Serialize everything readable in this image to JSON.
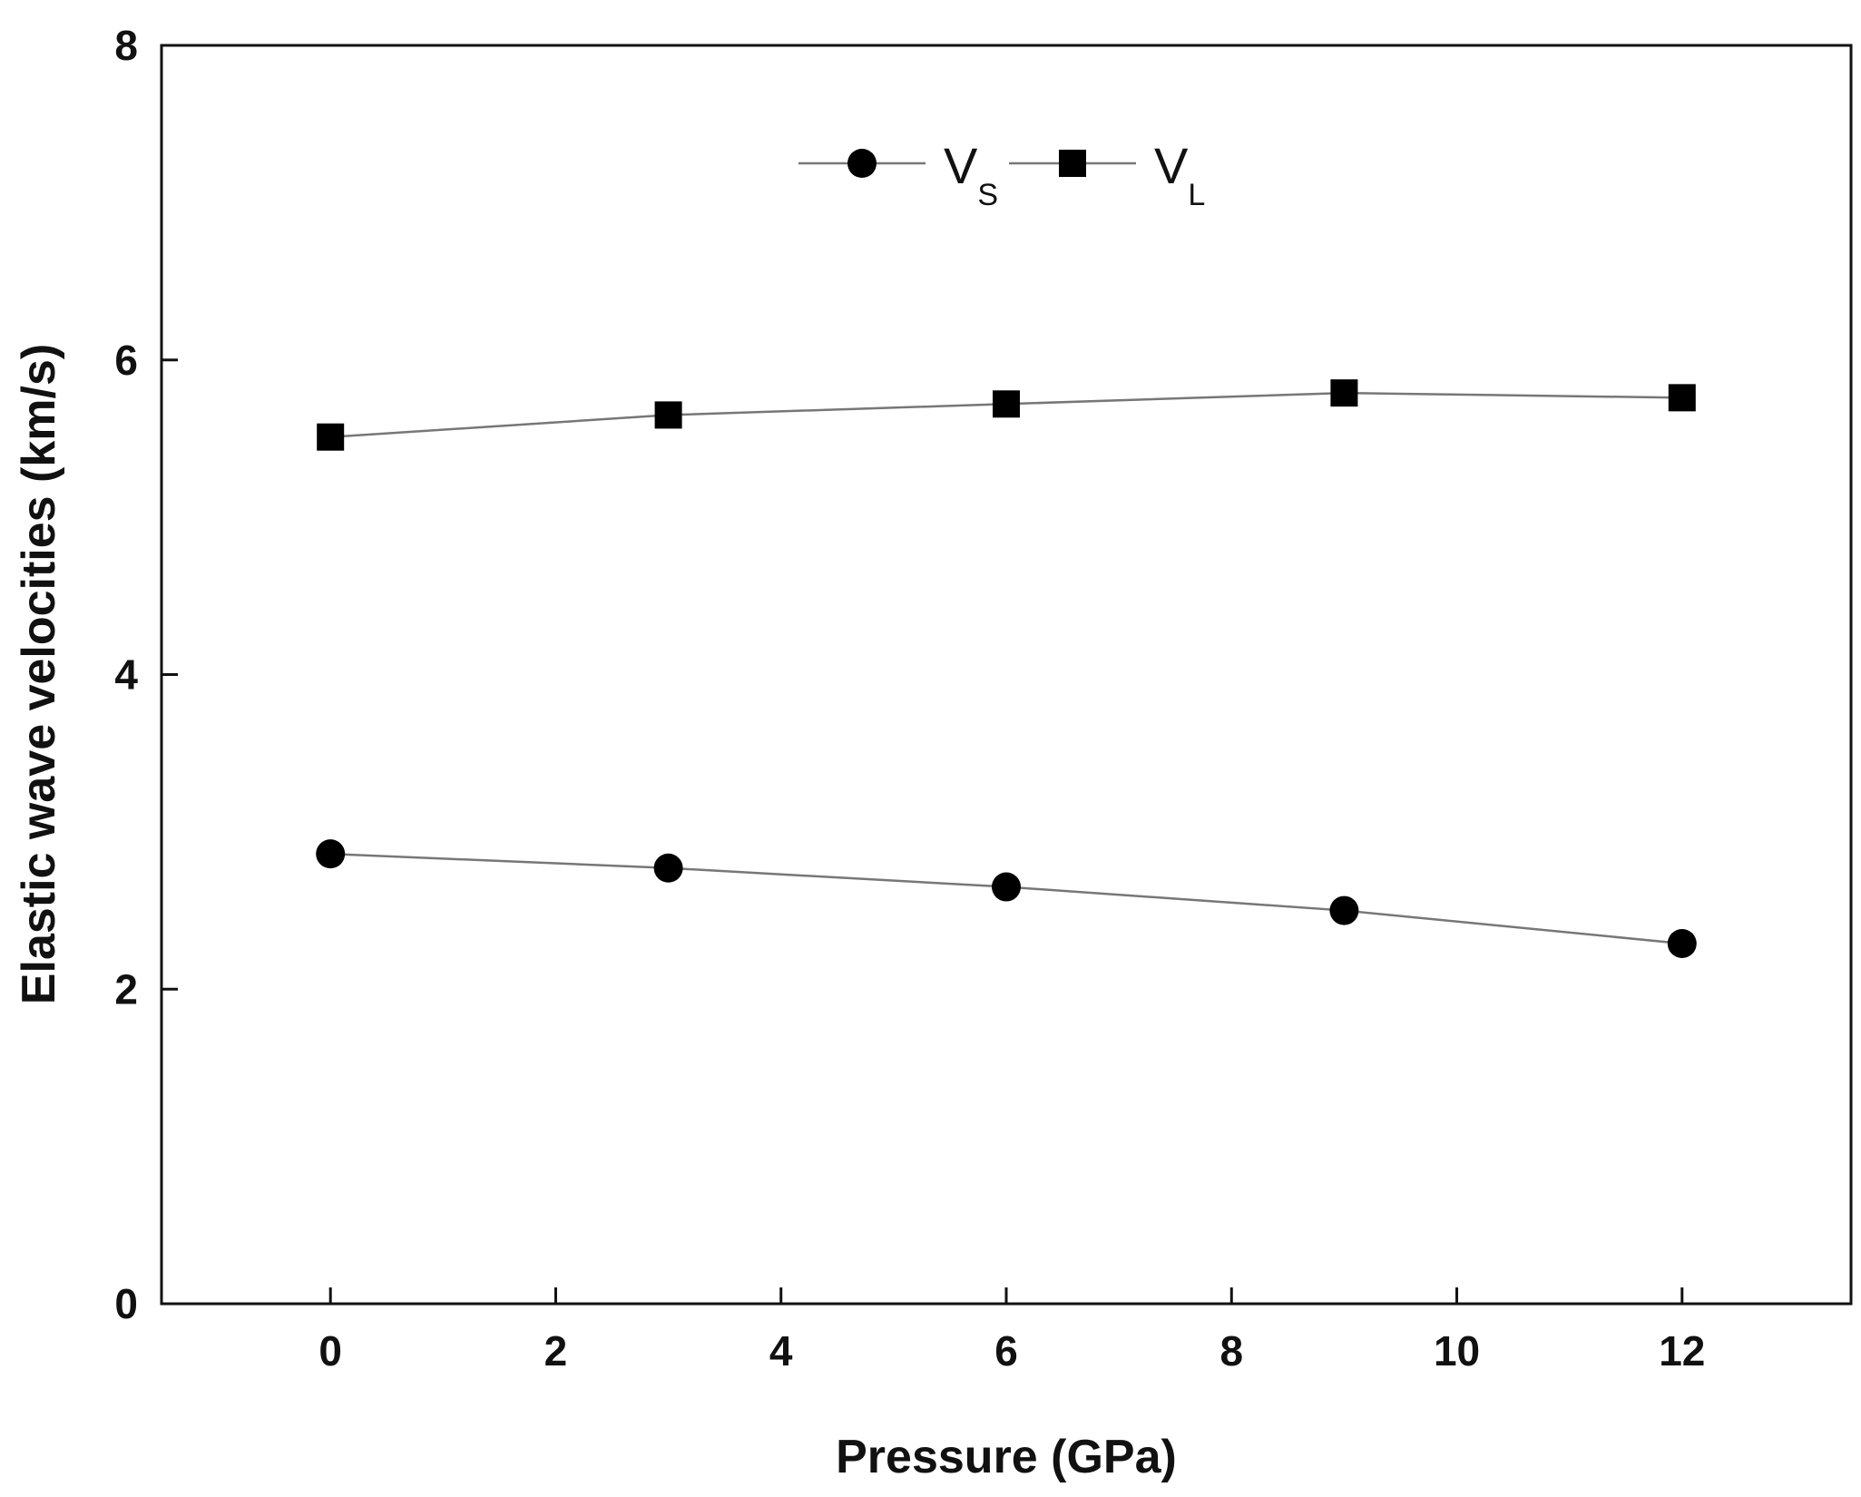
{
  "chart_data": {
    "type": "line",
    "title": "",
    "xlabel": "Pressure (GPa)",
    "ylabel": "Elastic wave velocities (km/s)",
    "xlim": [
      -1.5,
      13.5
    ],
    "ylim": [
      0,
      8
    ],
    "xticks": [
      0,
      2,
      4,
      6,
      8,
      10,
      12
    ],
    "yticks": [
      0,
      2,
      4,
      6,
      8
    ],
    "grid": false,
    "legend_position": "top-center",
    "series": [
      {
        "name_main": "V",
        "name_sub": "S",
        "marker": "circle",
        "color": "#000000",
        "line_color": "#777777",
        "x": [
          0,
          3,
          6,
          9,
          12
        ],
        "y": [
          2.86,
          2.77,
          2.65,
          2.5,
          2.29
        ]
      },
      {
        "name_main": "V",
        "name_sub": "L",
        "marker": "square",
        "color": "#000000",
        "line_color": "#777777",
        "x": [
          0,
          3,
          6,
          9,
          12
        ],
        "y": [
          5.51,
          5.65,
          5.72,
          5.79,
          5.76
        ]
      }
    ]
  }
}
